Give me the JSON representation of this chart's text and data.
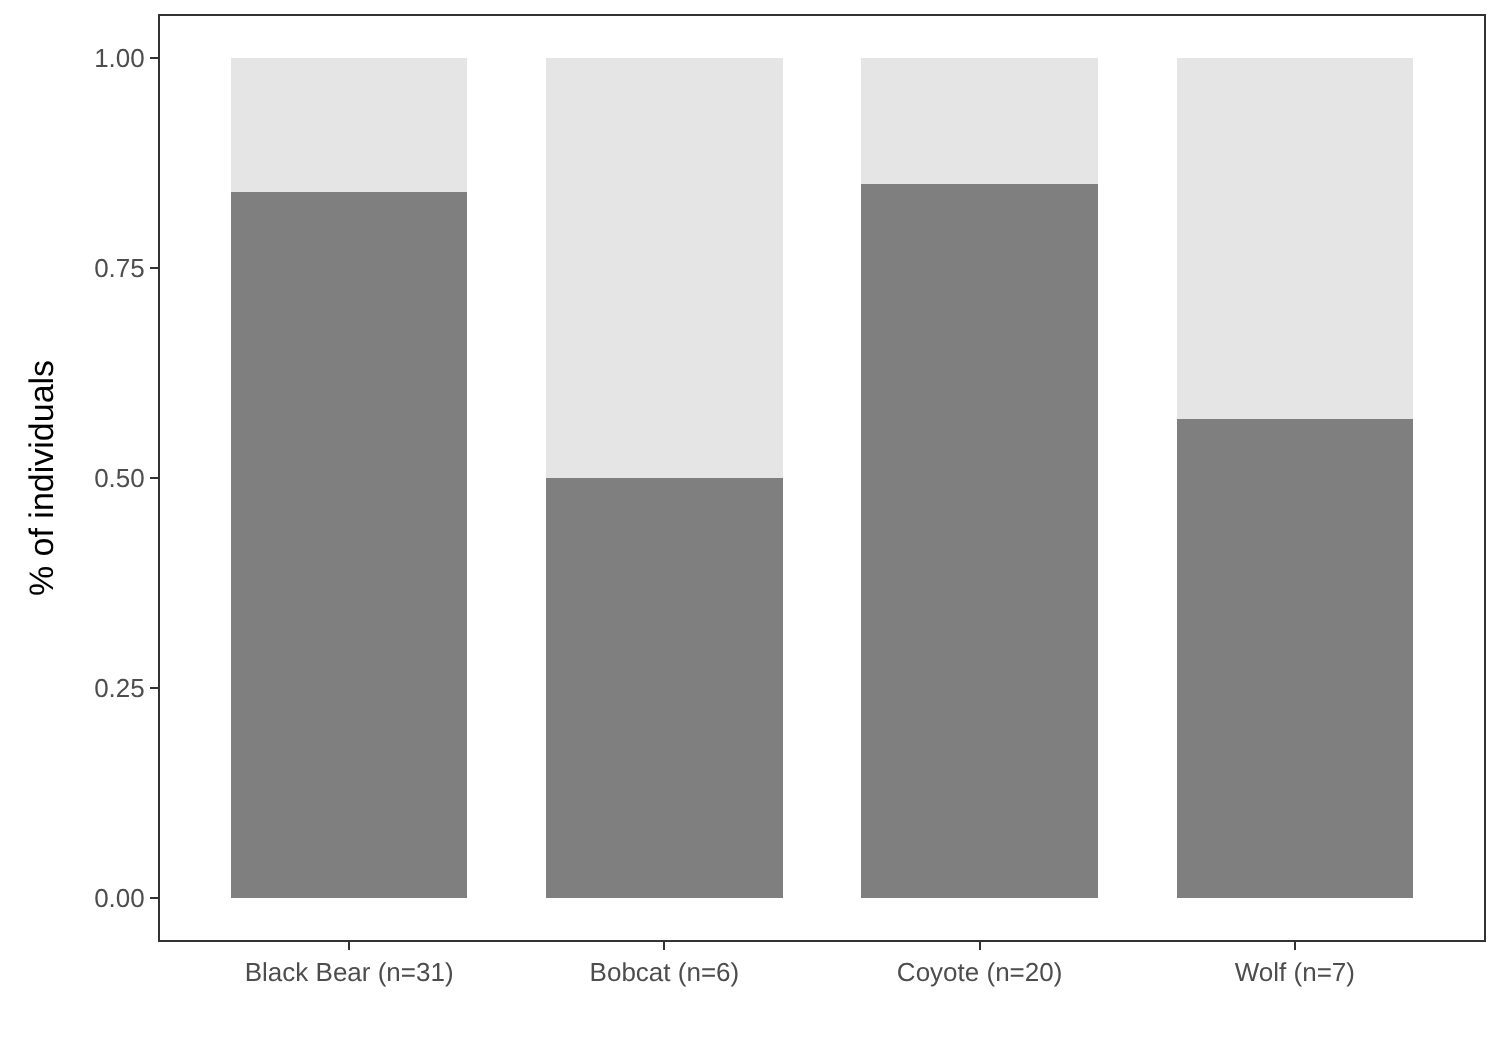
{
  "chart_data": {
    "type": "bar",
    "ylabel": "% of individuals",
    "categories": [
      "Black Bear (n=31)",
      "Bobcat (n=6)",
      "Coyote (n=20)",
      "Wolf (n=7)"
    ],
    "series": [
      {
        "color": "#7f7f7f",
        "values": [
          0.84,
          0.5,
          0.85,
          0.57
        ]
      },
      {
        "color": "#e5e5e5",
        "values": [
          0.16,
          0.5,
          0.15,
          0.43
        ]
      }
    ],
    "stacked": true,
    "ylim": [
      -0.05,
      1.05
    ],
    "yticks": [
      {
        "value": 0,
        "label": "0.00"
      },
      {
        "value": 0.25,
        "label": "0.25"
      },
      {
        "value": 0.5,
        "label": "0.50"
      },
      {
        "value": 0.75,
        "label": "0.75"
      },
      {
        "value": 1,
        "label": "1.00"
      }
    ]
  }
}
